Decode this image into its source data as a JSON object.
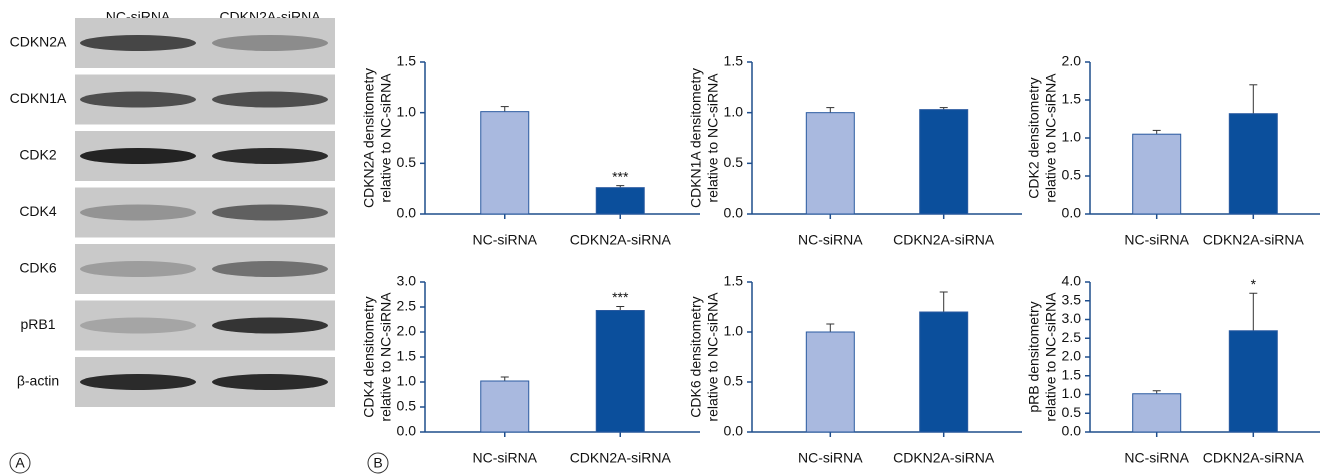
{
  "panels": {
    "a": "A",
    "b": "B"
  },
  "blot": {
    "columns": [
      "NC-siRNA",
      "CDKN2A-siRNA"
    ],
    "rows": [
      "CDKN2A",
      "CDKN1A",
      "CDK2",
      "CDK4",
      "CDK6",
      "pRB1",
      "β-actin"
    ]
  },
  "chart_data": [
    {
      "type": "bar",
      "y_label": [
        "CDKN2A densitometry",
        "relative to NC-siRNA"
      ],
      "categories": [
        "NC-siRNA",
        "CDKN2A-siRNA"
      ],
      "values": [
        1.01,
        0.26
      ],
      "errors": [
        0.05,
        0.02
      ],
      "significance": [
        null,
        "***"
      ],
      "colors": [
        "#a9b9df",
        "#0b4f9c"
      ],
      "ylim": [
        0,
        1.5
      ],
      "yticks": [
        {
          "value": 0,
          "label": "0.0"
        },
        0.5,
        {
          "value": 1,
          "label": "1.0"
        },
        1.5
      ]
    },
    {
      "type": "bar",
      "y_label": [
        "CDKN1A densitometry",
        "relative to NC-siRNA"
      ],
      "categories": [
        "NC-siRNA",
        "CDKN2A-siRNA"
      ],
      "values": [
        1.0,
        1.03
      ],
      "errors": [
        0.05,
        0.02
      ],
      "significance": [
        null,
        null
      ],
      "colors": [
        "#a9b9df",
        "#0b4f9c"
      ],
      "ylim": [
        0,
        1.5
      ],
      "yticks": [
        {
          "value": 0,
          "label": "0.0"
        },
        0.5,
        {
          "value": 1,
          "label": "1.0"
        },
        1.5
      ]
    },
    {
      "type": "bar",
      "y_label": [
        "CDK2 densitometry",
        "relative to NC-siRNA"
      ],
      "categories": [
        "NC-siRNA",
        "CDKN2A-siRNA"
      ],
      "values": [
        1.05,
        1.32
      ],
      "errors": [
        0.05,
        0.38
      ],
      "significance": [
        null,
        null
      ],
      "colors": [
        "#a9b9df",
        "#0b4f9c"
      ],
      "ylim": [
        0,
        2
      ],
      "yticks": [
        {
          "value": 0,
          "label": "0.0"
        },
        0.5,
        {
          "value": 1,
          "label": "1.0"
        },
        1.5,
        {
          "value": 2,
          "label": "2.0"
        }
      ]
    },
    {
      "type": "bar",
      "y_label": [
        "CDK4 densitometry",
        "relative to NC-siRNA"
      ],
      "categories": [
        "NC-siRNA",
        "CDKN2A-siRNA"
      ],
      "values": [
        1.02,
        2.43
      ],
      "errors": [
        0.08,
        0.08
      ],
      "significance": [
        null,
        "***"
      ],
      "colors": [
        "#a9b9df",
        "#0b4f9c"
      ],
      "ylim": [
        0,
        3
      ],
      "yticks": [
        {
          "value": 0,
          "label": "0.0"
        },
        0.5,
        {
          "value": 1,
          "label": "1.0"
        },
        1.5,
        {
          "value": 2,
          "label": "2.0"
        },
        2.5,
        {
          "value": 3,
          "label": "3.0"
        }
      ]
    },
    {
      "type": "bar",
      "y_label": [
        "CDK6 densitometry",
        "relative to NC-siRNA"
      ],
      "categories": [
        "NC-siRNA",
        "CDKN2A-siRNA"
      ],
      "values": [
        1.0,
        1.2
      ],
      "errors": [
        0.08,
        0.2
      ],
      "significance": [
        null,
        null
      ],
      "colors": [
        "#a9b9df",
        "#0b4f9c"
      ],
      "ylim": [
        0,
        1.5
      ],
      "yticks": [
        {
          "value": 0,
          "label": "0.0"
        },
        0.5,
        {
          "value": 1,
          "label": "1.0"
        },
        1.5
      ]
    },
    {
      "type": "bar",
      "y_label": [
        "pRB densitometry",
        "relative to NC-siRNA"
      ],
      "categories": [
        "NC-siRNA",
        "CDKN2A-siRNA"
      ],
      "values": [
        1.02,
        2.7
      ],
      "errors": [
        0.08,
        1.0
      ],
      "significance": [
        null,
        "*"
      ],
      "colors": [
        "#a9b9df",
        "#0b4f9c"
      ],
      "ylim": [
        0,
        4
      ],
      "yticks": [
        {
          "value": 0,
          "label": "0.0"
        },
        0.5,
        {
          "value": 1,
          "label": "1.0"
        },
        1.5,
        {
          "value": 2,
          "label": "2.0"
        },
        2.5,
        {
          "value": 3,
          "label": "3.0"
        },
        3.5,
        {
          "value": 4,
          "label": "4.0"
        }
      ]
    }
  ]
}
